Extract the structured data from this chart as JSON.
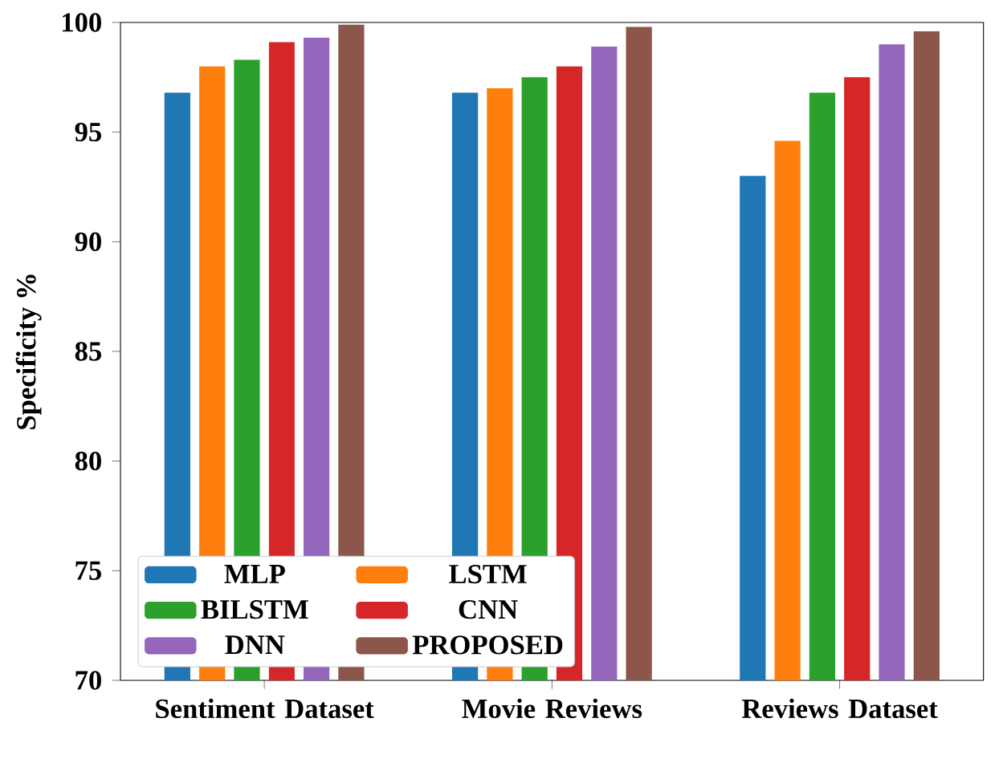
{
  "chart_data": {
    "type": "bar",
    "ylabel": "Specificity %",
    "categories": [
      "Sentiment Dataset",
      "Movie Reviews",
      "Reviews Dataset"
    ],
    "series": [
      {
        "name": "MLP",
        "color": "#1f77b4",
        "values": [
          96.8,
          96.8,
          93.0
        ]
      },
      {
        "name": "LSTM",
        "color": "#ff7f0e",
        "values": [
          98.0,
          97.0,
          94.6
        ]
      },
      {
        "name": "BILSTM",
        "color": "#2ca02c",
        "values": [
          98.3,
          97.5,
          96.8
        ]
      },
      {
        "name": "CNN",
        "color": "#d62728",
        "values": [
          99.1,
          98.0,
          97.5
        ]
      },
      {
        "name": "DNN",
        "color": "#9467bd",
        "values": [
          99.3,
          98.9,
          99.0
        ]
      },
      {
        "name": "PROPOSED",
        "color": "#8c564b",
        "values": [
          99.9,
          99.8,
          99.6
        ]
      }
    ],
    "ylim": [
      70,
      100
    ],
    "yticks": [
      70,
      75,
      80,
      85,
      90,
      95,
      100
    ],
    "grid": false,
    "legend": "bottom left"
  }
}
